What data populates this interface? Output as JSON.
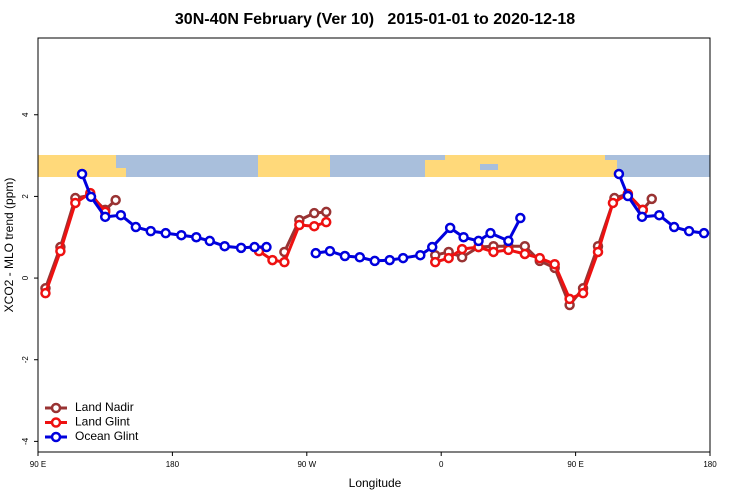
{
  "chart_data": {
    "type": "line",
    "title": "30N-40N February (Ver 10)   2015-01-01 to 2020-12-18",
    "x_label": "Longitude",
    "y_label": "XCO2 - MLO trend (ppm)",
    "xlim": [
      90,
      540
    ],
    "ylim": [
      -4.26,
      5.88
    ],
    "xticks": [
      {
        "value": 90,
        "label": "90 E"
      },
      180,
      {
        "value": 270,
        "label": "90 W"
      },
      {
        "value": 360,
        "label": "0"
      },
      {
        "value": 450,
        "label": "90 E"
      },
      {
        "value": 540,
        "label": "180"
      }
    ],
    "yticks": [
      -4,
      -2,
      0,
      2,
      4
    ],
    "legend": "bottom-left",
    "series": [
      {
        "name": "Land Nadir",
        "color": "#993333",
        "x": [
          95,
          105,
          115,
          125,
          135,
          142,
          200,
          255,
          265,
          275,
          283,
          320,
          356,
          365,
          374,
          385,
          395,
          405,
          416,
          426,
          436,
          446,
          455,
          465,
          476,
          485,
          495,
          501
        ],
        "values": [
          -0.25,
          0.76,
          1.96,
          2.03,
          1.67,
          1.91,
          null,
          0.64,
          1.42,
          1.59,
          1.62,
          null,
          0.56,
          0.64,
          0.51,
          0.76,
          0.78,
          0.78,
          0.78,
          0.42,
          0.25,
          -0.66,
          -0.25,
          0.78,
          1.96,
          2.06,
          1.67,
          1.94
        ]
      },
      {
        "name": "Land Glint",
        "color": "#ee1111",
        "x": [
          95,
          105,
          115,
          125,
          135,
          200,
          238,
          247,
          255,
          265,
          275,
          283,
          320,
          356,
          365,
          374,
          385,
          395,
          405,
          416,
          426,
          436,
          446,
          455,
          465,
          475,
          485,
          495
        ],
        "values": [
          -0.37,
          0.66,
          1.84,
          2.08,
          1.62,
          null,
          0.66,
          0.44,
          0.39,
          1.3,
          1.27,
          1.37,
          null,
          0.39,
          0.49,
          0.71,
          0.76,
          0.64,
          0.69,
          0.59,
          0.49,
          0.34,
          -0.51,
          -0.37,
          0.64,
          1.84,
          2.06,
          1.67
        ]
      },
      {
        "name": "Ocean Glint",
        "color": "#0000dd",
        "x": [
          119.5,
          125.5,
          135,
          145.5,
          155.5,
          165.5,
          175.5,
          186,
          196,
          205,
          215,
          226,
          235,
          243,
          260,
          276,
          285.5,
          295.5,
          305.5,
          315.5,
          325.5,
          334.5,
          346,
          354,
          366,
          375,
          385,
          393,
          405,
          413,
          460,
          479,
          485,
          494.5,
          506,
          516,
          526,
          536
        ],
        "values": [
          2.55,
          1.99,
          1.5,
          1.54,
          1.25,
          1.15,
          1.1,
          1.05,
          1.0,
          0.91,
          0.78,
          0.74,
          0.76,
          0.76,
          null,
          0.61,
          0.66,
          0.54,
          0.51,
          0.42,
          0.44,
          0.49,
          0.56,
          0.76,
          1.23,
          1.0,
          0.91,
          1.1,
          0.91,
          1.47,
          null,
          2.55,
          2.01,
          1.5,
          1.54,
          1.25,
          1.15,
          1.1
        ]
      }
    ]
  }
}
